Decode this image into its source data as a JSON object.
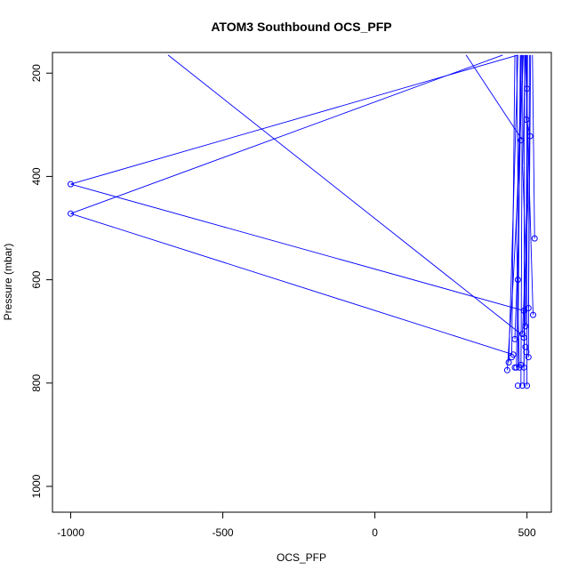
{
  "chart_data": {
    "type": "line",
    "title": "ATOM3 Southbound OCS_PFP",
    "xlabel": "OCS_PFP",
    "ylabel": "Pressure (mbar)",
    "xlim": [
      -1060,
      580
    ],
    "ylim": [
      1050,
      160
    ],
    "y_reversed": true,
    "xticks": [
      -1000,
      -500,
      0,
      500
    ],
    "xtick_labels": [
      "-1000",
      "-500",
      "0",
      "500"
    ],
    "yticks": [
      200,
      400,
      600,
      800,
      1000
    ],
    "ytick_labels": [
      "200",
      "400",
      "600",
      "800",
      "1000"
    ],
    "grid": false,
    "legend": "none",
    "color": "#0000ff",
    "points": [
      [
        -1000,
        415
      ],
      [
        -1000,
        472
      ],
      [
        435,
        775
      ],
      [
        440,
        760
      ],
      [
        450,
        750
      ],
      [
        455,
        745
      ],
      [
        460,
        770
      ],
      [
        465,
        770
      ],
      [
        470,
        805
      ],
      [
        475,
        770
      ],
      [
        480,
        765
      ],
      [
        485,
        805
      ],
      [
        490,
        770
      ],
      [
        495,
        730
      ],
      [
        500,
        805
      ],
      [
        505,
        750
      ],
      [
        498,
        740
      ],
      [
        490,
        712
      ],
      [
        495,
        690
      ],
      [
        490,
        660
      ],
      [
        505,
        655
      ],
      [
        520,
        668
      ],
      [
        525,
        520
      ],
      [
        510,
        322
      ],
      [
        498,
        290
      ],
      [
        500,
        230
      ],
      [
        480,
        330
      ],
      [
        470,
        600
      ],
      [
        485,
        705
      ],
      [
        460,
        715
      ]
    ],
    "segments": [
      [
        [
          470,
          165
        ],
        [
          -1000,
          415
        ]
      ],
      [
        [
          -1000,
          415
        ],
        [
          490,
          660
        ]
      ],
      [
        [
          420,
          165
        ],
        [
          -1000,
          472
        ]
      ],
      [
        [
          -1000,
          472
        ],
        [
          455,
          745
        ]
      ],
      [
        [
          -680,
          165
        ],
        [
          480,
          705
        ]
      ],
      [
        [
          300,
          165
        ],
        [
          485,
          330
        ]
      ],
      [
        [
          450,
          745
        ],
        [
          460,
          165
        ]
      ],
      [
        [
          470,
          770
        ],
        [
          478,
          165
        ]
      ],
      [
        [
          480,
          805
        ],
        [
          485,
          165
        ]
      ],
      [
        [
          490,
          805
        ],
        [
          492,
          165
        ]
      ],
      [
        [
          500,
          805
        ],
        [
          500,
          165
        ]
      ],
      [
        [
          505,
          750
        ],
        [
          508,
          165
        ]
      ],
      [
        [
          440,
          760
        ],
        [
          470,
          165
        ]
      ],
      [
        [
          465,
          770
        ],
        [
          482,
          165
        ]
      ],
      [
        [
          495,
          690
        ],
        [
          502,
          165
        ]
      ],
      [
        [
          505,
          655
        ],
        [
          512,
          165
        ]
      ],
      [
        [
          520,
          668
        ],
        [
          495,
          165
        ]
      ],
      [
        [
          525,
          520
        ],
        [
          518,
          165
        ]
      ],
      [
        [
          510,
          322
        ],
        [
          498,
          290
        ]
      ],
      [
        [
          498,
          290
        ],
        [
          500,
          230
        ]
      ],
      [
        [
          435,
          775
        ],
        [
          455,
          600
        ]
      ],
      [
        [
          455,
          600
        ],
        [
          472,
          400
        ]
      ],
      [
        [
          472,
          400
        ],
        [
          488,
          165
        ]
      ],
      [
        [
          475,
          770
        ],
        [
          465,
          500
        ]
      ],
      [
        [
          465,
          500
        ],
        [
          476,
          300
        ]
      ],
      [
        [
          476,
          300
        ],
        [
          481,
          165
        ]
      ],
      [
        [
          490,
          770
        ],
        [
          496,
          560
        ]
      ],
      [
        [
          496,
          560
        ],
        [
          486,
          380
        ]
      ],
      [
        [
          486,
          380
        ],
        [
          494,
          165
        ]
      ],
      [
        [
          485,
          705
        ],
        [
          503,
          450
        ]
      ],
      [
        [
          503,
          450
        ],
        [
          497,
          165
        ]
      ],
      [
        [
          460,
          715
        ],
        [
          472,
          520
        ]
      ],
      [
        [
          472,
          520
        ],
        [
          466,
          165
        ]
      ]
    ]
  }
}
